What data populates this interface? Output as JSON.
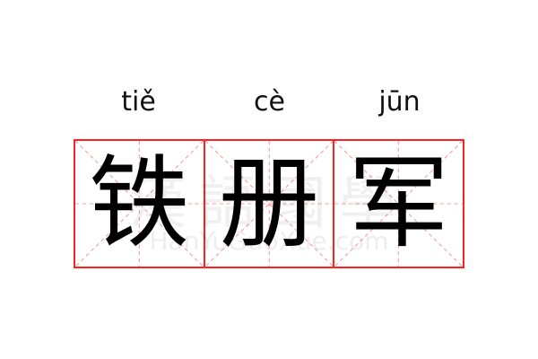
{
  "entries": [
    {
      "pinyin": "tiě",
      "hanzi": "铁"
    },
    {
      "pinyin": "cè",
      "hanzi": "册"
    },
    {
      "pinyin": "jūn",
      "hanzi": "军"
    }
  ],
  "watermark": {
    "hanzi": "漢語國學",
    "site": "HanYuGuoXue.com"
  },
  "colors": {
    "grid_border": "#ff2222",
    "guide_lines": "#f5a0a0"
  }
}
